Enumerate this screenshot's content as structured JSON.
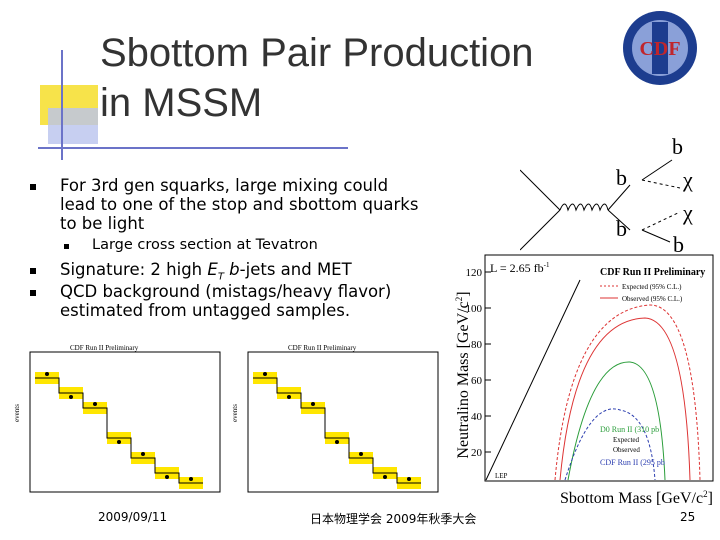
{
  "header": {
    "title_lines": [
      "Sbottom Pair Production",
      "in MSSM"
    ]
  },
  "bullets": [
    {
      "lines": [
        "For 3rd gen squarks, large mixing could",
        "lead to one of the stop and sbottom quarks",
        "to be light"
      ]
    },
    {
      "sub": "Large cross section at Tevatron"
    },
    {
      "segments": [
        "Signature:  2 high ",
        "E",
        "T",
        " ",
        "b",
        "-jets and MET"
      ]
    },
    {
      "lines": [
        "QCD background (mistags/heavy flavor)",
        "estimated from untagged samples."
      ]
    }
  ],
  "diagram": {
    "labels": [
      "b",
      "b",
      "χ",
      "b",
      "χ",
      "b"
    ]
  },
  "exclusion_plot": {
    "lumi": "L = 2.65 fb",
    "lumi_exp": "-1",
    "preliminary": "CDF Run II Preliminary",
    "y_label": "Neutralino Mass [GeV/c",
    "x_label": "Sbottom Mass [GeV/c",
    "label_exp": "2",
    "label_close": "]",
    "yticks": [
      "120",
      "100",
      "80",
      "60",
      "40",
      "20"
    ],
    "legend": [
      "Expected (95% C.L.)",
      "Observed (95% C.L.)"
    ],
    "d0": "D0 Run II (310 pb",
    "cdf": "CDF Run II (295 pb",
    "pb_close": "-1)",
    "expected": "Expected",
    "observed": "Observed",
    "lep": "LEP"
  },
  "hist_plots": [
    {
      "preliminary": "CDF Run II Preliminary",
      "y_label": "events"
    },
    {
      "preliminary": "CDF Run II Preliminary",
      "y_label": "events"
    }
  ],
  "footer": {
    "date": "2009/09/11",
    "event": "日本物理学会 2009年秋季大会",
    "page": "25"
  }
}
